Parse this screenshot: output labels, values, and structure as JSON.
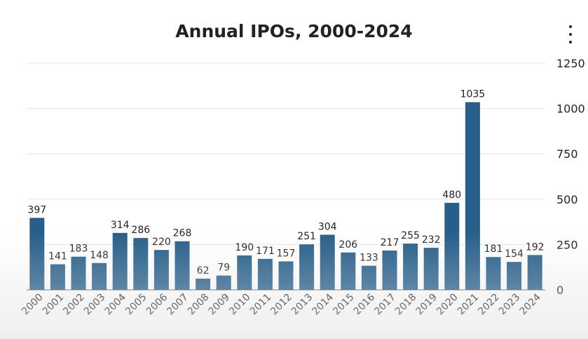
{
  "chart_data": {
    "type": "bar",
    "title": "Annual IPOs, 2000-2024",
    "xlabel": "",
    "ylabel": "",
    "categories": [
      "2000",
      "2001",
      "2002",
      "2003",
      "2004",
      "2005",
      "2006",
      "2007",
      "2008",
      "2009",
      "2010",
      "2011",
      "2012",
      "2013",
      "2014",
      "2015",
      "2016",
      "2017",
      "2018",
      "2019",
      "2020",
      "2021",
      "2022",
      "2023",
      "2024"
    ],
    "values": [
      397,
      141,
      183,
      148,
      314,
      286,
      220,
      268,
      62,
      79,
      190,
      171,
      157,
      251,
      304,
      206,
      133,
      217,
      255,
      232,
      480,
      1035,
      181,
      154,
      192
    ],
    "ylim": [
      0,
      1250
    ],
    "yticks": [
      0,
      250,
      500,
      750,
      1000,
      1250
    ],
    "y_axis_side": "right",
    "grid": true,
    "bar_color": "#275f8a"
  },
  "menu_icon": "more-vertical-icon"
}
